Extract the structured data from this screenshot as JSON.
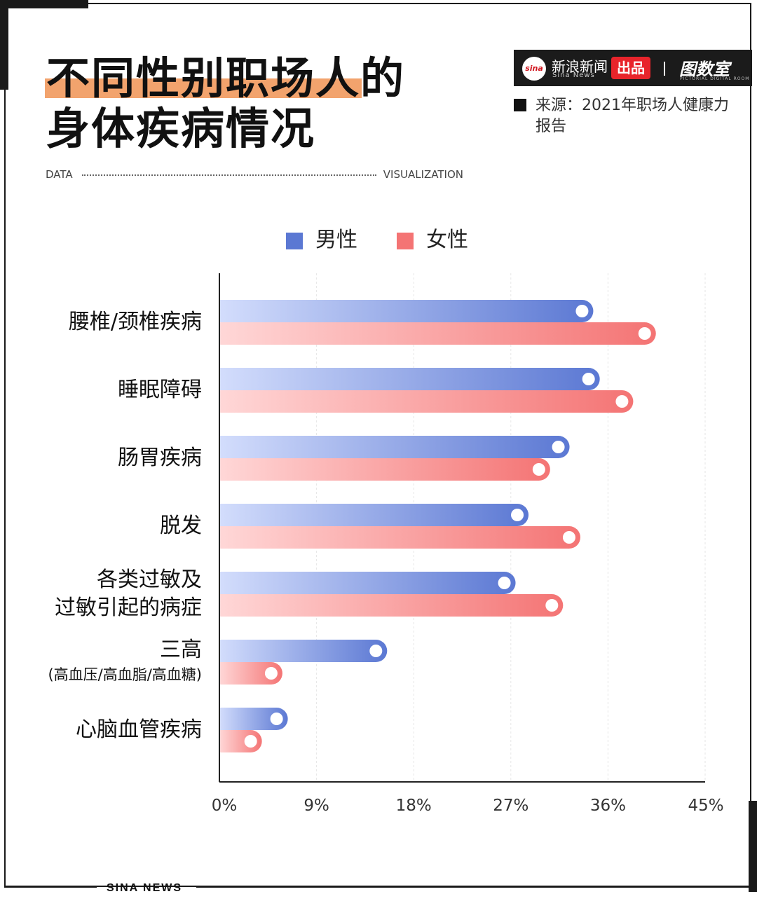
{
  "header": {
    "title_line1_highlight": "不同性别职场人",
    "title_line1_rest": "的",
    "title_line2": "身体疾病情况",
    "data_label": "DATA",
    "visualization_label": "VISUALIZATION"
  },
  "brand": {
    "logo_text": "sina",
    "name": "新浪新闻",
    "name_en": "Sina News",
    "tag": "出品",
    "logo2": "图数室",
    "logo2_en": "PICTORIAL DIGITAL ROOM"
  },
  "source": {
    "text": "来源：2021年职场人健康力报告"
  },
  "footer": {
    "text": "SINA NEWS"
  },
  "colors": {
    "male": "#5b78d3",
    "female": "#f47474"
  },
  "chart_data": {
    "type": "bar",
    "orientation": "horizontal",
    "categories": [
      {
        "lines": [
          "腰椎/颈椎疾病"
        ],
        "small": false
      },
      {
        "lines": [
          "睡眠障碍"
        ],
        "small": false
      },
      {
        "lines": [
          "肠胃疾病"
        ],
        "small": false
      },
      {
        "lines": [
          "脱发"
        ],
        "small": false
      },
      {
        "lines": [
          "各类过敏及",
          "过敏引起的病症"
        ],
        "small": false
      },
      {
        "lines": [
          "三高",
          "(高血压/高血脂/高血糖)"
        ],
        "small": true
      },
      {
        "lines": [
          "心脑血管疾病"
        ],
        "small": false
      }
    ],
    "series": [
      {
        "name": "男性",
        "color": "#5b78d3",
        "values": [
          33.6,
          34.2,
          31.4,
          27.6,
          26.4,
          14.5,
          5.3
        ]
      },
      {
        "name": "女性",
        "color": "#f47474",
        "values": [
          39.4,
          37.3,
          29.6,
          32.4,
          30.8,
          4.8,
          2.9
        ]
      }
    ],
    "xlim": [
      0,
      45
    ],
    "xticks": [
      "0%",
      "9%",
      "18%",
      "27%",
      "36%",
      "45%"
    ],
    "grid": true,
    "legend_position": "top"
  }
}
